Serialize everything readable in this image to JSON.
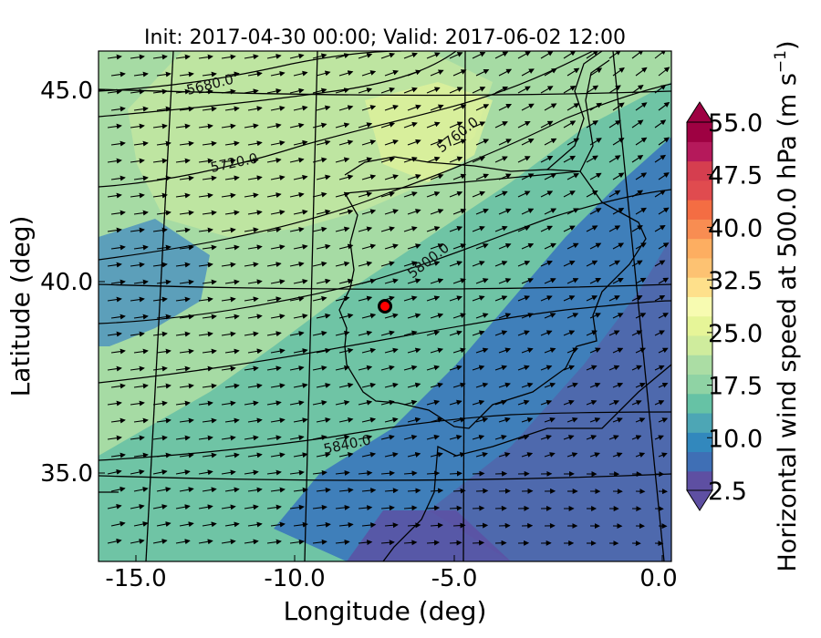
{
  "chart_data": {
    "type": "heatmap",
    "title": "Init: 2017-04-30 00:00; Valid: 2017-06-02 12:00",
    "xlabel": "Longitude (deg)",
    "ylabel": "Latitude (deg)",
    "xlim": [
      -15.8,
      0.2
    ],
    "ylim": [
      32.6,
      46.0
    ],
    "xticks": [
      -15.0,
      -10.0,
      -5.0,
      0.0
    ],
    "xtick_labels": [
      "-15.0",
      "-10.0",
      "-5.0",
      "0.0"
    ],
    "yticks": [
      35.0,
      40.0,
      45.0
    ],
    "ytick_labels": [
      "35.0",
      "40.0",
      "45.0"
    ],
    "colorbar": {
      "label": "Horizontal wind speed at 500.0 hPa (m s",
      "label_sup": "−1",
      "label_end": ")",
      "min": 2.5,
      "max": 55.0,
      "ticks": [
        2.5,
        10.0,
        17.5,
        25.0,
        32.5,
        40.0,
        47.5,
        55.0
      ],
      "tick_labels": [
        "2.5",
        "10.0",
        "17.5",
        "25.0",
        "32.5",
        "40.0",
        "47.5",
        "55.0"
      ],
      "colormap": [
        "#5e4fa2",
        "#3f6fb5",
        "#3288bd",
        "#4da6b5",
        "#66c2a5",
        "#8fd3a4",
        "#abdda4",
        "#cfec9d",
        "#e6f598",
        "#f7fbb1",
        "#fee08b",
        "#fdc272",
        "#fdae61",
        "#f88d52",
        "#f46d43",
        "#e04b4f",
        "#d53e4f",
        "#b5195b",
        "#9e0142"
      ],
      "extend": "both"
    },
    "contours": {
      "variable": "geopotential height",
      "labels": [
        {
          "text": "5680.0",
          "lon": -12.5,
          "lat": 45.0
        },
        {
          "text": "5720.0",
          "lon": -12.2,
          "lat": 43.0
        },
        {
          "text": "5760.0",
          "lon": -5.8,
          "lat": 43.9
        },
        {
          "text": "5800.0",
          "lon": -6.5,
          "lat": 40.5
        },
        {
          "text": "5840.0",
          "lon": -8.5,
          "lat": 35.7
        }
      ]
    },
    "marker": {
      "lon": -7.6,
      "lat": 39.4,
      "color": "#ff0000"
    },
    "gridlines": true,
    "wind_vectors": true
  }
}
